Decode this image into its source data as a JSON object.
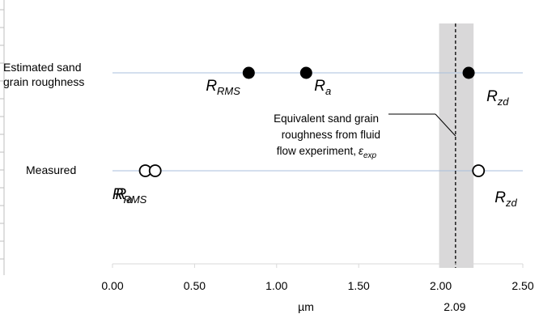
{
  "chart_data": {
    "type": "scatter",
    "categories": [
      "Estimated sand grain roughness",
      "Measured"
    ],
    "category_label_lines": [
      [
        "Estimated sand",
        "grain roughness"
      ],
      [
        "Measured"
      ]
    ],
    "xlabel": "µm",
    "xlim": [
      0,
      2.5
    ],
    "xticks": [
      0,
      0.5,
      1.0,
      1.5,
      2.0,
      2.5
    ],
    "xtick_labels": [
      "0.00",
      "0.50",
      "1.00",
      "1.50",
      "2.00",
      "2.50"
    ],
    "series": [
      {
        "category": "Estimated sand grain roughness",
        "marker": "filled",
        "points": [
          {
            "label": "R",
            "sub": "RMS",
            "x": 0.83
          },
          {
            "label": "R",
            "sub": "a",
            "x": 1.18
          },
          {
            "label": "R",
            "sub": "zd",
            "x": 2.17
          }
        ]
      },
      {
        "category": "Measured",
        "marker": "open",
        "points": [
          {
            "label": "R",
            "sub": "a",
            "x": 0.2
          },
          {
            "label": "R",
            "sub": "RMS",
            "x": 0.26
          },
          {
            "label": "R",
            "sub": "zd",
            "x": 2.23
          }
        ]
      }
    ],
    "reference_line": {
      "x": 2.09,
      "label": "2.09",
      "band": [
        1.99,
        2.2
      ]
    },
    "annotation": {
      "lines": [
        "Equivalent  sand  grain",
        "roughness  from  fluid",
        "flow  experiment,  "
      ],
      "symbol": "ε",
      "symbol_sub": "exp"
    },
    "colors": {
      "band": "#d9d8d9",
      "gridline": "#a9bfdc",
      "marker": "#000000",
      "axis": "#bfbfbf"
    }
  }
}
